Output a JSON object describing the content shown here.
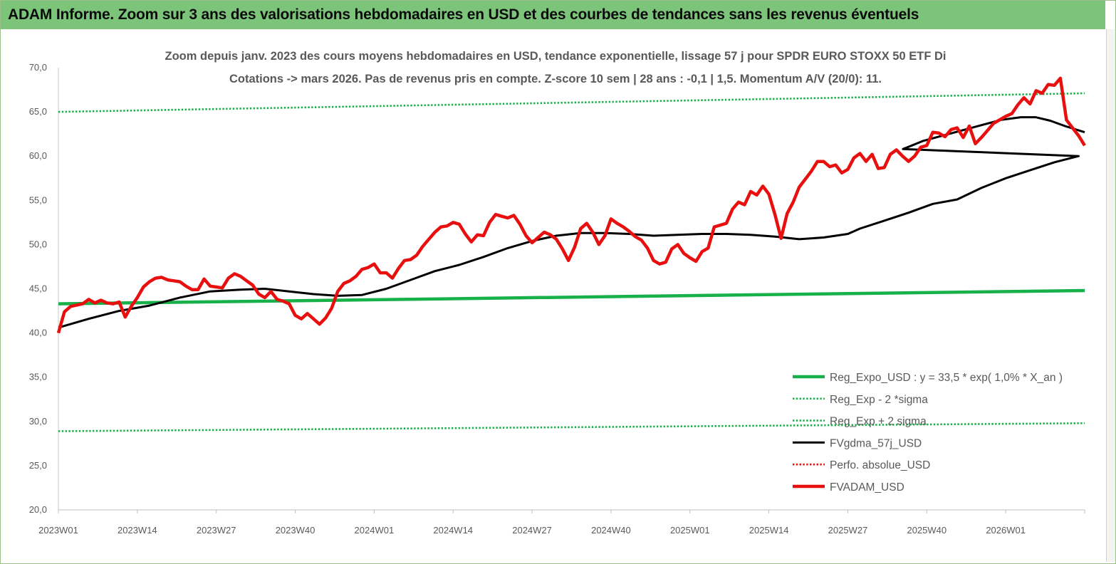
{
  "header": {
    "title": "ADAM Informe. Zoom sur 3 ans des valorisations hebdomadaires en USD et des courbes de tendances sans les revenus éventuels"
  },
  "colors": {
    "header_bg": "#7cc47a",
    "reg_expo": "#18b04a",
    "fvgdma": "#000000",
    "fvadam": "#e8100f",
    "perfo": "#e8100f"
  },
  "chart_data": {
    "type": "line",
    "title": "Zoom depuis janv. 2023 des cours moyens hebdomadaires en USD, tendance exponentielle, lissage 57 j pour SPDR EURO STOXX 50 ETF Di",
    "subtitle": "Cotations -> mars 2026. Pas de revenus pris en compte. Z-score 10 sem | 28 ans : -0,1 | 1,5. Momentum A/V (20/0): 11.",
    "ylim": [
      20,
      70
    ],
    "yticks": [
      "20,0",
      "25,0",
      "30,0",
      "35,0",
      "40,0",
      "45,0",
      "50,0",
      "55,0",
      "60,0",
      "65,0",
      "70,0"
    ],
    "xticks": [
      "2023W01",
      "2023W14",
      "2023W27",
      "2023W40",
      "2024W01",
      "2024W14",
      "2024W27",
      "2024W40",
      "2025W01",
      "2025W14",
      "2025W27",
      "2025W40",
      "2026W01"
    ],
    "xtick_index": [
      0,
      13,
      26,
      39,
      52,
      65,
      78,
      91,
      104,
      117,
      130,
      143,
      156
    ],
    "n_weeks": 170,
    "grid": false,
    "legend_position": "bottom-right",
    "series": [
      {
        "name": "Reg_Expo_USD : y = 33,5 * exp( 1,0% * X_an )",
        "style": "solid-thick",
        "color": "#18b04a",
        "values": [
          [
            0,
            43.3
          ],
          [
            169,
            44.8
          ]
        ]
      },
      {
        "name": "Reg_Exp - 2 *sigma",
        "style": "dotted",
        "color": "#18b04a",
        "values": [
          [
            0,
            65.0
          ],
          [
            169,
            67.1
          ]
        ]
      },
      {
        "name": "Reg_Exp + 2 sigma",
        "style": "dotted",
        "color": "#18b04a",
        "values": [
          [
            0,
            28.9
          ],
          [
            169,
            29.8
          ]
        ]
      },
      {
        "name": "FVgdma_57j_USD",
        "style": "solid",
        "color": "#000000",
        "values": [
          [
            0,
            40.6
          ],
          [
            5,
            41.6
          ],
          [
            10,
            42.5
          ],
          [
            15,
            43.1
          ],
          [
            20,
            44.0
          ],
          [
            25,
            44.7
          ],
          [
            30,
            44.9
          ],
          [
            34,
            45.0
          ],
          [
            38,
            44.7
          ],
          [
            42,
            44.4
          ],
          [
            46,
            44.2
          ],
          [
            50,
            44.3
          ],
          [
            54,
            45.0
          ],
          [
            58,
            46.0
          ],
          [
            62,
            47.0
          ],
          [
            66,
            47.7
          ],
          [
            70,
            48.6
          ],
          [
            74,
            49.6
          ],
          [
            78,
            50.4
          ],
          [
            82,
            51.0
          ],
          [
            86,
            51.3
          ],
          [
            90,
            51.3
          ],
          [
            94,
            51.2
          ],
          [
            98,
            51.0
          ],
          [
            102,
            51.1
          ],
          [
            106,
            51.2
          ],
          [
            110,
            51.2
          ],
          [
            114,
            51.1
          ],
          [
            118,
            50.9
          ],
          [
            122,
            50.6
          ],
          [
            126,
            50.8
          ],
          [
            130,
            51.2
          ],
          [
            132,
            51.8
          ],
          [
            136,
            52.7
          ],
          [
            140,
            53.6
          ],
          [
            144,
            54.6
          ],
          [
            148,
            55.1
          ],
          [
            152,
            56.4
          ],
          [
            156,
            57.5
          ],
          [
            160,
            58.4
          ],
          [
            164,
            59.3
          ],
          [
            168,
            60.0
          ],
          [
            172,
            60.8
          ],
          [
            176,
            61.7
          ],
          [
            180,
            62.3
          ],
          [
            184,
            62.9
          ],
          [
            188,
            63.5
          ],
          [
            192,
            64.1
          ],
          [
            196,
            64.4
          ],
          [
            199,
            64.4
          ],
          [
            202,
            64.0
          ],
          [
            205,
            63.4
          ],
          [
            209,
            62.7
          ]
        ]
      },
      {
        "name": "Perfo. absolue_USD",
        "style": "dotted",
        "color": "#e8100f",
        "values": []
      },
      {
        "name": "FVADAM_USD",
        "style": "solid-thick",
        "color": "#e8100f",
        "values": [
          [
            0,
            40.0
          ],
          [
            1,
            42.4
          ],
          [
            2,
            43.0
          ],
          [
            4,
            43.3
          ],
          [
            5,
            43.8
          ],
          [
            6,
            43.4
          ],
          [
            7,
            43.7
          ],
          [
            8,
            43.4
          ],
          [
            9,
            43.3
          ],
          [
            10,
            43.5
          ],
          [
            11,
            41.8
          ],
          [
            12,
            43.0
          ],
          [
            13,
            44.0
          ],
          [
            14,
            45.2
          ],
          [
            15,
            45.8
          ],
          [
            16,
            46.2
          ],
          [
            17,
            46.3
          ],
          [
            18,
            46.0
          ],
          [
            19,
            45.9
          ],
          [
            20,
            45.8
          ],
          [
            21,
            45.3
          ],
          [
            22,
            44.9
          ],
          [
            23,
            44.9
          ],
          [
            24,
            46.1
          ],
          [
            25,
            45.3
          ],
          [
            26,
            45.2
          ],
          [
            27,
            45.1
          ],
          [
            28,
            46.2
          ],
          [
            29,
            46.7
          ],
          [
            30,
            46.4
          ],
          [
            31,
            45.9
          ],
          [
            32,
            45.4
          ],
          [
            33,
            44.4
          ],
          [
            34,
            44.0
          ],
          [
            35,
            44.7
          ],
          [
            36,
            43.8
          ],
          [
            37,
            43.6
          ],
          [
            38,
            43.3
          ],
          [
            39,
            42.0
          ],
          [
            40,
            41.6
          ],
          [
            41,
            42.2
          ],
          [
            42,
            41.6
          ],
          [
            43,
            41.0
          ],
          [
            44,
            41.7
          ],
          [
            45,
            42.8
          ],
          [
            46,
            44.7
          ],
          [
            47,
            45.6
          ],
          [
            48,
            45.9
          ],
          [
            49,
            46.4
          ],
          [
            50,
            47.2
          ],
          [
            51,
            47.4
          ],
          [
            52,
            47.8
          ],
          [
            53,
            46.8
          ],
          [
            54,
            46.8
          ],
          [
            55,
            46.2
          ],
          [
            56,
            47.3
          ],
          [
            57,
            48.2
          ],
          [
            58,
            48.3
          ],
          [
            59,
            48.8
          ],
          [
            60,
            49.8
          ],
          [
            61,
            50.6
          ],
          [
            62,
            51.4
          ],
          [
            63,
            52.0
          ],
          [
            64,
            52.1
          ],
          [
            65,
            52.5
          ],
          [
            66,
            52.3
          ],
          [
            67,
            51.2
          ],
          [
            68,
            50.3
          ],
          [
            69,
            51.1
          ],
          [
            70,
            51.0
          ],
          [
            71,
            52.5
          ],
          [
            72,
            53.4
          ],
          [
            73,
            53.2
          ],
          [
            74,
            53.0
          ],
          [
            75,
            53.3
          ],
          [
            76,
            52.3
          ],
          [
            77,
            51.0
          ],
          [
            78,
            50.2
          ],
          [
            79,
            50.8
          ],
          [
            80,
            51.4
          ],
          [
            81,
            51.1
          ],
          [
            82,
            50.6
          ],
          [
            83,
            49.5
          ],
          [
            84,
            48.2
          ],
          [
            85,
            49.7
          ],
          [
            86,
            51.8
          ],
          [
            87,
            52.4
          ],
          [
            88,
            51.4
          ],
          [
            89,
            50.0
          ],
          [
            90,
            51.0
          ],
          [
            91,
            52.9
          ],
          [
            92,
            52.4
          ],
          [
            93,
            52.0
          ],
          [
            94,
            51.5
          ],
          [
            95,
            50.9
          ],
          [
            96,
            50.5
          ],
          [
            97,
            49.6
          ],
          [
            98,
            48.2
          ],
          [
            99,
            47.8
          ],
          [
            100,
            48.0
          ],
          [
            101,
            49.5
          ],
          [
            102,
            50.0
          ],
          [
            103,
            49.0
          ],
          [
            104,
            48.5
          ],
          [
            105,
            48.1
          ],
          [
            106,
            49.2
          ],
          [
            107,
            49.6
          ],
          [
            108,
            52.0
          ],
          [
            109,
            52.2
          ],
          [
            110,
            52.4
          ],
          [
            111,
            54.0
          ],
          [
            112,
            54.8
          ],
          [
            113,
            54.5
          ],
          [
            114,
            56.0
          ],
          [
            115,
            55.6
          ],
          [
            116,
            56.6
          ],
          [
            117,
            55.7
          ],
          [
            118,
            53.4
          ],
          [
            119,
            50.7
          ],
          [
            120,
            53.5
          ],
          [
            121,
            54.8
          ],
          [
            122,
            56.5
          ],
          [
            123,
            57.4
          ],
          [
            124,
            58.3
          ],
          [
            125,
            59.4
          ],
          [
            126,
            59.4
          ],
          [
            127,
            58.8
          ],
          [
            128,
            59.0
          ],
          [
            129,
            58.1
          ],
          [
            130,
            58.5
          ],
          [
            131,
            59.8
          ],
          [
            132,
            60.3
          ],
          [
            133,
            59.4
          ],
          [
            134,
            60.2
          ],
          [
            135,
            58.6
          ],
          [
            136,
            58.7
          ],
          [
            137,
            60.2
          ],
          [
            138,
            60.7
          ],
          [
            139,
            60.0
          ],
          [
            140,
            59.4
          ],
          [
            141,
            60.0
          ],
          [
            142,
            61.0
          ],
          [
            143,
            61.2
          ],
          [
            144,
            62.7
          ],
          [
            145,
            62.6
          ],
          [
            146,
            62.2
          ],
          [
            147,
            63.0
          ],
          [
            148,
            63.2
          ],
          [
            149,
            62.1
          ],
          [
            150,
            63.4
          ],
          [
            151,
            61.4
          ],
          [
            152,
            62.1
          ],
          [
            153,
            62.9
          ],
          [
            154,
            63.7
          ],
          [
            155,
            64.1
          ],
          [
            156,
            64.5
          ],
          [
            157,
            64.8
          ],
          [
            158,
            65.8
          ],
          [
            159,
            66.6
          ],
          [
            160,
            65.9
          ],
          [
            161,
            67.4
          ],
          [
            162,
            67.1
          ],
          [
            163,
            68.1
          ],
          [
            164,
            68.0
          ],
          [
            165,
            68.8
          ],
          [
            166,
            64.1
          ],
          [
            167,
            63.2
          ],
          [
            168,
            62.3
          ],
          [
            169,
            61.2
          ]
        ]
      }
    ]
  }
}
